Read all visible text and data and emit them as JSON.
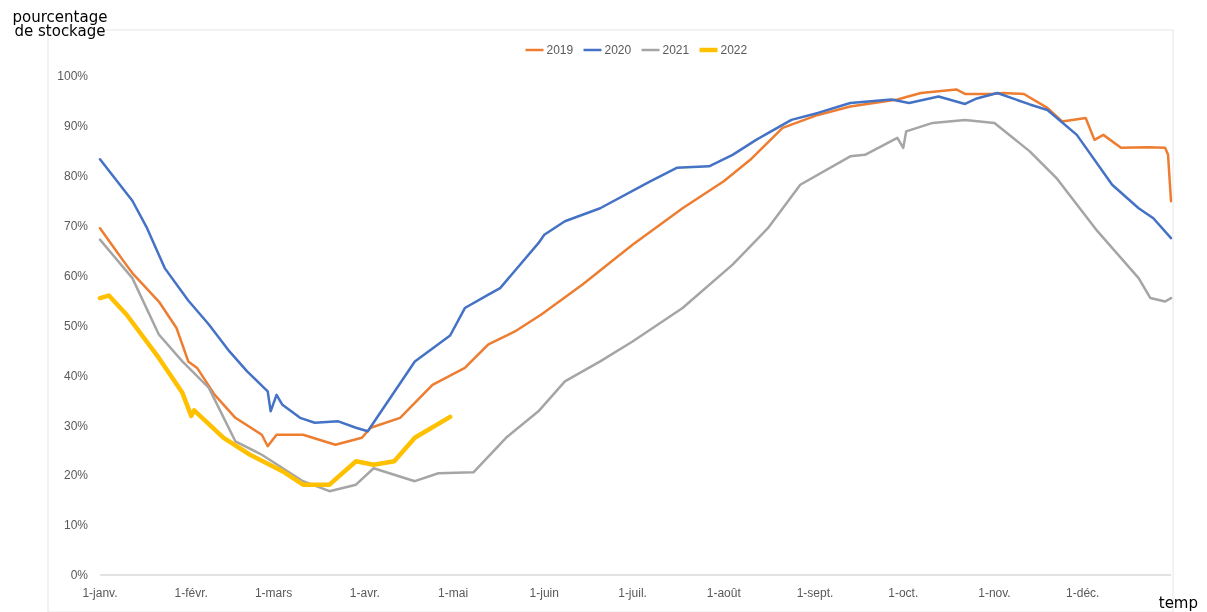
{
  "chart_data": {
    "type": "line",
    "ylabel": "pourcentage\nde stockage",
    "xlabel": "temp",
    "legend": "top",
    "grid": false,
    "line_style": "solid",
    "marker": "none",
    "xlim": [
      "--01-01",
      "--12-31"
    ],
    "xticks": [
      {
        "value": "--01-01",
        "label": "1-janv."
      },
      {
        "value": "--02-01",
        "label": "1-févr."
      },
      {
        "value": "--03-01",
        "label": "1-mars"
      },
      {
        "value": "--04-01",
        "label": "1-avr."
      },
      {
        "value": "--05-01",
        "label": "1-mai"
      },
      {
        "value": "--06-01",
        "label": "1-juin"
      },
      {
        "value": "--07-01",
        "label": "1-juil."
      },
      {
        "value": "--08-01",
        "label": "1-août"
      },
      {
        "value": "--09-01",
        "label": "1-sept."
      },
      {
        "value": "--10-01",
        "label": "1-oct."
      },
      {
        "value": "--11-01",
        "label": "1-nov."
      },
      {
        "value": "--12-01",
        "label": "1-déc."
      }
    ],
    "ylim": [
      0,
      100
    ],
    "yticks": [
      {
        "value": 0,
        "label": "0%"
      },
      {
        "value": 10,
        "label": "10%"
      },
      {
        "value": 20,
        "label": "20%"
      },
      {
        "value": 30,
        "label": "30%"
      },
      {
        "value": 40,
        "label": "40%"
      },
      {
        "value": 50,
        "label": "50%"
      },
      {
        "value": 60,
        "label": "60%"
      },
      {
        "value": 70,
        "label": "70%"
      },
      {
        "value": 80,
        "label": "80%"
      },
      {
        "value": 90,
        "label": "90%"
      },
      {
        "value": 100,
        "label": "100%"
      }
    ],
    "series": [
      {
        "name": "2019",
        "color": "#ed7d31",
        "x": [
          "--01-01",
          "--01-09",
          "--01-12",
          "--01-21",
          "--01-27",
          "--01-31",
          "--02-03",
          "--02-09",
          "--02-16",
          "--02-25",
          "--02-27",
          "--03-02",
          "--03-11",
          "--03-22",
          "--03-31",
          "--04-03",
          "--04-13",
          "--04-24",
          "--05-05",
          "--05-13",
          "--05-22",
          "--05-31",
          "--06-14",
          "--07-01",
          "--07-18",
          "--08-01",
          "--08-10",
          "--08-21",
          "--09-02",
          "--09-13",
          "--09-29",
          "--10-07",
          "--10-19",
          "--10-22",
          "--10-31",
          "--11-04",
          "--11-11",
          "--11-19",
          "--11-24",
          "--12-02",
          "--12-05",
          "--12-08",
          "--12-14",
          "--12-23",
          "--12-29",
          "--12-30",
          "--12-31"
        ],
        "values": [
          69.5,
          62.9,
          60.5,
          54.8,
          49.5,
          42.8,
          41.5,
          36.1,
          31.5,
          28.1,
          25.8,
          28.1,
          28.1,
          26.1,
          27.5,
          29.5,
          31.5,
          38.1,
          41.5,
          46.2,
          48.8,
          52.2,
          58.2,
          66.2,
          73.5,
          78.9,
          83.2,
          89.6,
          92.2,
          93.9,
          95.3,
          96.6,
          97.3,
          96.4,
          96.4,
          96.6,
          96.4,
          93.6,
          90.9,
          91.6,
          87.2,
          88.2,
          85.6,
          85.7,
          85.6,
          84.2,
          74.9
        ]
      },
      {
        "name": "2020",
        "color": "#4472c4",
        "x": [
          "--01-01",
          "--01-12",
          "--01-17",
          "--01-23",
          "--01-31",
          "--02-07",
          "--02-14",
          "--02-20",
          "--02-27",
          "--02-28",
          "--03-02",
          "--03-04",
          "--03-10",
          "--03-15",
          "--03-23",
          "--03-29",
          "--04-02",
          "--04-18",
          "--04-30",
          "--05-05",
          "--05-13",
          "--05-17",
          "--05-30",
          "--06-01",
          "--06-08",
          "--06-20",
          "--07-07",
          "--07-16",
          "--07-27",
          "--08-04",
          "--08-12",
          "--08-24",
          "--09-02",
          "--09-13",
          "--09-27",
          "--10-03",
          "--10-13",
          "--10-22",
          "--10-26",
          "--11-02",
          "--11-13",
          "--11-19",
          "--11-29",
          "--12-11",
          "--12-20",
          "--12-25",
          "--12-31"
        ],
        "values": [
          83.3,
          75,
          69.5,
          61.5,
          55,
          50.2,
          44.8,
          40.8,
          36.8,
          32.8,
          36.1,
          34.1,
          31.5,
          30.5,
          30.8,
          29.5,
          28.8,
          42.8,
          48,
          53.5,
          56.2,
          57.5,
          66.5,
          68.2,
          70.9,
          73.5,
          78.9,
          81.6,
          81.9,
          84.2,
          87.2,
          91.2,
          92.6,
          94.6,
          95.3,
          94.6,
          95.9,
          94.4,
          95.5,
          96.6,
          94.3,
          93.2,
          88.2,
          78.2,
          73.5,
          71.5,
          67.5
        ]
      },
      {
        "name": "2021",
        "color": "#a5a5a5",
        "x": [
          "--01-01",
          "--01-12",
          "--01-21",
          "--01-29",
          "--02-07",
          "--02-16",
          "--02-25",
          "--03-11",
          "--03-20",
          "--03-29",
          "--04-04",
          "--04-18",
          "--04-26",
          "--05-08",
          "--05-19",
          "--05-30",
          "--06-08",
          "--06-20",
          "--07-01",
          "--07-18",
          "--08-04",
          "--08-16",
          "--08-27",
          "--09-13",
          "--09-18",
          "--09-29",
          "--10-01",
          "--10-02",
          "--10-11",
          "--10-22",
          "--11-01",
          "--11-13",
          "--11-22",
          "--12-06",
          "--12-20",
          "--12-24",
          "--12-29",
          "--12-31"
        ],
        "values": [
          67.2,
          59.5,
          48.2,
          42.8,
          37.5,
          26.8,
          24.1,
          18.8,
          16.8,
          18.1,
          21.4,
          18.8,
          20.4,
          20.6,
          27.5,
          32.8,
          38.8,
          42.8,
          46.8,
          53.5,
          62.2,
          69.5,
          78.2,
          83.9,
          84.2,
          87.6,
          85.6,
          88.9,
          90.6,
          91.2,
          90.6,
          84.9,
          79.6,
          68.9,
          59.5,
          55.5,
          54.8,
          55.5
        ]
      },
      {
        "name": "2022",
        "color": "#ffc000",
        "x": [
          "--01-01",
          "--01-04",
          "--01-10",
          "--01-21",
          "--01-29",
          "--02-01",
          "--02-02",
          "--02-12",
          "--02-21",
          "--03-04",
          "--03-11",
          "--03-20",
          "--03-29",
          "--04-04",
          "--04-11",
          "--04-18",
          "--04-30"
        ],
        "values": [
          55.5,
          56,
          52.2,
          43.5,
          36.5,
          31.9,
          33,
          27.5,
          24.1,
          20.8,
          18.1,
          18.1,
          22.8,
          22.1,
          22.8,
          27.5,
          31.7
        ]
      }
    ]
  }
}
